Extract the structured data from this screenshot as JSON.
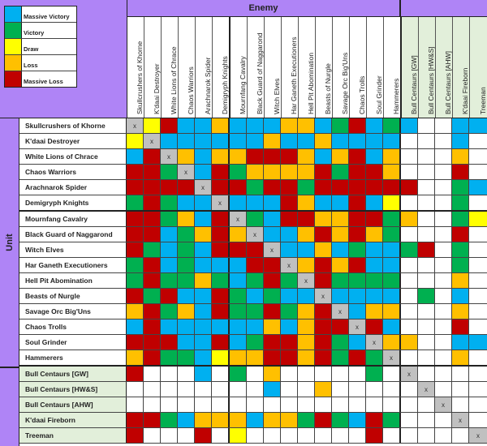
{
  "legend": [
    {
      "code": "B",
      "label": "Massive Victory",
      "color": "#00B0F0"
    },
    {
      "code": "G",
      "label": "Victory",
      "color": "#00B050"
    },
    {
      "code": "Y",
      "label": "Draw",
      "color": "#FFFF00"
    },
    {
      "code": "O",
      "label": "Loss",
      "color": "#FFC000"
    },
    {
      "code": "R",
      "label": "Massive Loss",
      "color": "#C00000"
    }
  ],
  "colors": {
    "header_purple": "#AF84F6",
    "extra_header_green": "#E2EFDA",
    "self_cell_grey": "#C0C0C0",
    "empty_cell": "#FFFFFF"
  },
  "enemy_header": "Enemy",
  "unit_header": "Unit",
  "self_marker": "x",
  "columns": [
    "Skullcrushers of Khorne",
    "K'daai Destroyer",
    "White Lions of Chrace",
    "Chaos Warriors",
    "Arachnarok Spider",
    "Demigryph Knights",
    "Mournfang Cavalry",
    "Black Guard of Naggarond",
    "Witch Elves",
    "Har Ganeth Executioners",
    "Hell Pit Abomination",
    "Beasts of Nurgle",
    "Savage Orc Big'Uns",
    "Chaos Trolls",
    "Soul Grinder",
    "Hammerers",
    "Bull Centaurs [GW]",
    "Bull Centaurs [HW&S]",
    "Bull Centaurs [AHW]",
    "K'daai Fireborn",
    "Treeman"
  ],
  "rows": [
    {
      "unit": "Skullcrushers of Khorne",
      "results": [
        "X",
        "Y",
        "R",
        "B",
        "B",
        "O",
        "B",
        "B",
        "B",
        "O",
        "O",
        "B",
        "G",
        "R",
        "B",
        "G",
        "B",
        "W",
        "W",
        "B",
        "B"
      ]
    },
    {
      "unit": "K'daai Destroyer",
      "results": [
        "Y",
        "X",
        "B",
        "B",
        "B",
        "B",
        "B",
        "B",
        "O",
        "B",
        "B",
        "O",
        "B",
        "B",
        "B",
        "B",
        "W",
        "W",
        "W",
        "B",
        "W"
      ]
    },
    {
      "unit": "White Lions of Chrace",
      "results": [
        "B",
        "R",
        "X",
        "O",
        "B",
        "O",
        "O",
        "R",
        "R",
        "R",
        "O",
        "B",
        "O",
        "R",
        "B",
        "O",
        "W",
        "W",
        "W",
        "O",
        "W"
      ]
    },
    {
      "unit": "Chaos Warriors",
      "results": [
        "R",
        "R",
        "G",
        "X",
        "B",
        "R",
        "G",
        "O",
        "O",
        "O",
        "O",
        "R",
        "G",
        "R",
        "R",
        "O",
        "W",
        "W",
        "W",
        "R",
        "W"
      ]
    },
    {
      "unit": "Arachnarok Spider",
      "results": [
        "R",
        "R",
        "R",
        "R",
        "X",
        "R",
        "R",
        "G",
        "R",
        "R",
        "G",
        "R",
        "R",
        "R",
        "R",
        "R",
        "R",
        "W",
        "W",
        "G",
        "B"
      ]
    },
    {
      "unit": "Demigryph Knights",
      "results": [
        "G",
        "R",
        "G",
        "B",
        "B",
        "X",
        "B",
        "B",
        "B",
        "R",
        "O",
        "B",
        "B",
        "R",
        "B",
        "Y",
        "W",
        "W",
        "W",
        "G",
        "W"
      ]
    },
    {
      "unit": "Mournfang Cavalry",
      "results": [
        "R",
        "R",
        "G",
        "O",
        "B",
        "R",
        "X",
        "G",
        "B",
        "R",
        "R",
        "O",
        "O",
        "R",
        "R",
        "G",
        "O",
        "W",
        "W",
        "G",
        "Y"
      ]
    },
    {
      "unit": "Black Guard of Naggarond",
      "results": [
        "R",
        "R",
        "B",
        "G",
        "O",
        "R",
        "O",
        "X",
        "B",
        "B",
        "O",
        "R",
        "O",
        "R",
        "O",
        "G",
        "W",
        "W",
        "W",
        "R",
        "W"
      ]
    },
    {
      "unit": "Witch Elves",
      "results": [
        "R",
        "G",
        "B",
        "G",
        "B",
        "R",
        "R",
        "R",
        "X",
        "B",
        "B",
        "O",
        "B",
        "G",
        "B",
        "B",
        "G",
        "R",
        "W",
        "G",
        "W"
      ]
    },
    {
      "unit": "Har Ganeth Executioners",
      "results": [
        "G",
        "R",
        "B",
        "G",
        "B",
        "B",
        "B",
        "R",
        "R",
        "X",
        "O",
        "R",
        "O",
        "R",
        "B",
        "B",
        "W",
        "W",
        "W",
        "G",
        "W"
      ]
    },
    {
      "unit": "Hell Pit Abomination",
      "results": [
        "G",
        "R",
        "G",
        "G",
        "O",
        "G",
        "B",
        "G",
        "R",
        "G",
        "X",
        "R",
        "G",
        "G",
        "G",
        "G",
        "W",
        "W",
        "W",
        "O",
        "W"
      ]
    },
    {
      "unit": "Beasts of Nurgle",
      "results": [
        "R",
        "G",
        "R",
        "B",
        "B",
        "R",
        "G",
        "B",
        "G",
        "B",
        "B",
        "X",
        "B",
        "B",
        "B",
        "B",
        "W",
        "G",
        "W",
        "B",
        "W"
      ]
    },
    {
      "unit": "Savage Orc Big'Uns",
      "results": [
        "O",
        "R",
        "G",
        "O",
        "B",
        "R",
        "G",
        "G",
        "R",
        "G",
        "O",
        "R",
        "X",
        "B",
        "O",
        "O",
        "W",
        "W",
        "W",
        "O",
        "W"
      ]
    },
    {
      "unit": "Chaos Trolls",
      "results": [
        "B",
        "R",
        "B",
        "B",
        "B",
        "B",
        "B",
        "B",
        "O",
        "B",
        "O",
        "R",
        "R",
        "X",
        "R",
        "B",
        "W",
        "W",
        "W",
        "R",
        "W"
      ]
    },
    {
      "unit": "Soul Grinder",
      "results": [
        "R",
        "R",
        "R",
        "B",
        "B",
        "R",
        "B",
        "G",
        "R",
        "R",
        "O",
        "R",
        "G",
        "B",
        "X",
        "O",
        "O",
        "W",
        "W",
        "B",
        "B"
      ]
    },
    {
      "unit": "Hammerers",
      "results": [
        "O",
        "R",
        "G",
        "G",
        "B",
        "Y",
        "O",
        "O",
        "R",
        "R",
        "O",
        "R",
        "G",
        "R",
        "G",
        "X",
        "W",
        "W",
        "W",
        "O",
        "W"
      ]
    },
    {
      "unit": "Bull Centaurs [GW]",
      "results": [
        "R",
        "W",
        "W",
        "W",
        "B",
        "W",
        "G",
        "W",
        "O",
        "W",
        "W",
        "W",
        "W",
        "W",
        "G",
        "W",
        "X",
        "W",
        "W",
        "W",
        "W"
      ]
    },
    {
      "unit": "Bull Centaurs [HW&S]",
      "results": [
        "W",
        "W",
        "W",
        "W",
        "W",
        "W",
        "W",
        "W",
        "B",
        "W",
        "W",
        "O",
        "W",
        "W",
        "W",
        "W",
        "W",
        "X",
        "W",
        "W",
        "W"
      ]
    },
    {
      "unit": "Bull Centaurs [AHW]",
      "results": [
        "W",
        "W",
        "W",
        "W",
        "W",
        "W",
        "W",
        "W",
        "W",
        "W",
        "W",
        "W",
        "W",
        "W",
        "W",
        "W",
        "W",
        "W",
        "X",
        "W",
        "W"
      ]
    },
    {
      "unit": "K'daai Fireborn",
      "results": [
        "R",
        "R",
        "G",
        "B",
        "O",
        "O",
        "O",
        "B",
        "O",
        "O",
        "G",
        "R",
        "G",
        "B",
        "R",
        "G",
        "W",
        "W",
        "W",
        "X",
        "W"
      ]
    },
    {
      "unit": "Treeman",
      "results": [
        "R",
        "W",
        "W",
        "W",
        "R",
        "W",
        "Y",
        "W",
        "W",
        "W",
        "W",
        "W",
        "W",
        "W",
        "R",
        "W",
        "W",
        "W",
        "W",
        "W",
        "X"
      ]
    }
  ]
}
